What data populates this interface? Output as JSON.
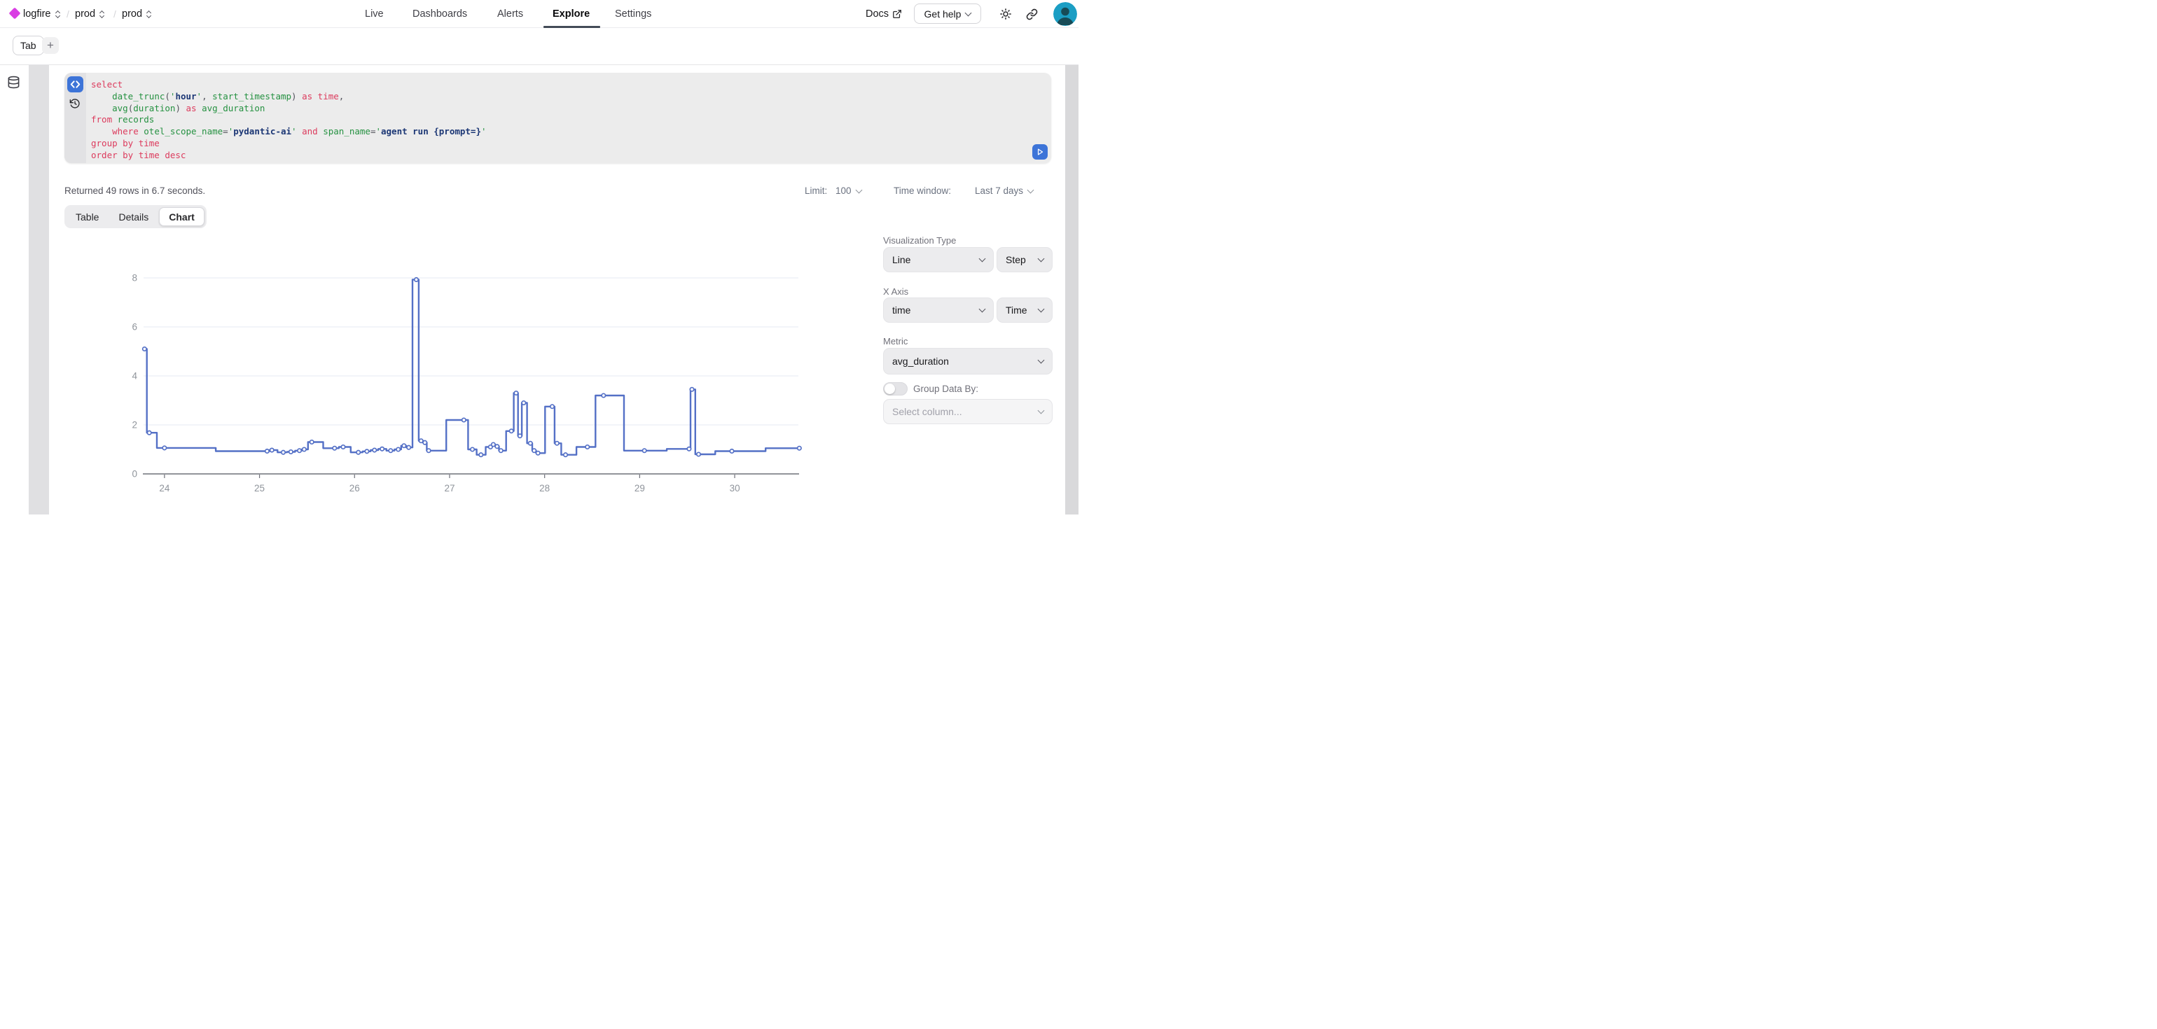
{
  "colors": {
    "logo_magenta": "#d93ee3",
    "accent_blue": "#3d74d8",
    "chart_line": "#5470c6",
    "grid_line": "#e4e9f3",
    "axis_line": "#6e7079",
    "tick_text": "#8f949b"
  },
  "nav": {
    "breadcrumb": {
      "org": "logfire",
      "env": "prod",
      "project": "prod",
      "separator": "/"
    },
    "items": [
      "Live",
      "Dashboards",
      "Alerts",
      "Explore",
      "Settings"
    ],
    "active_item": "Explore",
    "docs_label": "Docs",
    "get_help_label": "Get help"
  },
  "tab_bar": {
    "tab_label": "Tab",
    "add_tab_label": "+"
  },
  "editor": {
    "sql_lines": [
      [
        [
          "k",
          "select"
        ]
      ],
      [
        [
          "p",
          "    "
        ],
        [
          "i",
          "date_trunc"
        ],
        [
          "p",
          "("
        ],
        [
          "q",
          "'"
        ],
        [
          "s",
          "hour"
        ],
        [
          "q",
          "'"
        ],
        [
          "p",
          ", "
        ],
        [
          "i",
          "start_timestamp"
        ],
        [
          "p",
          ") "
        ],
        [
          "k",
          "as time"
        ],
        [
          "p",
          ","
        ]
      ],
      [
        [
          "p",
          "    "
        ],
        [
          "i",
          "avg"
        ],
        [
          "p",
          "("
        ],
        [
          "i",
          "duration"
        ],
        [
          "p",
          ") "
        ],
        [
          "k",
          "as"
        ],
        [
          "i",
          " avg_duration"
        ]
      ],
      [
        [
          "k",
          "from"
        ],
        [
          "i",
          " records"
        ]
      ],
      [
        [
          "p",
          "    "
        ],
        [
          "k",
          "where"
        ],
        [
          "i",
          " otel_scope_name"
        ],
        [
          "p",
          "="
        ],
        [
          "q",
          "'"
        ],
        [
          "s",
          "pydantic-ai"
        ],
        [
          "q",
          "'"
        ],
        [
          "k",
          " and"
        ],
        [
          "i",
          " span_name"
        ],
        [
          "p",
          "="
        ],
        [
          "q",
          "'"
        ],
        [
          "s",
          "agent run {prompt=}"
        ],
        [
          "q",
          "'"
        ]
      ],
      [
        [
          "k",
          "group by time"
        ]
      ],
      [
        [
          "k",
          "order by time desc"
        ]
      ]
    ]
  },
  "results_bar": {
    "status": "Returned 49 rows in 6.7 seconds.",
    "limit_label": "Limit:",
    "limit_value": "100",
    "time_window_label": "Time window:",
    "time_window_value": "Last 7 days"
  },
  "view_switcher": {
    "options": [
      "Table",
      "Details",
      "Chart"
    ],
    "active": "Chart"
  },
  "viz_panel": {
    "visualization_type_label": "Visualization Type",
    "visualization_type_value": "Line",
    "visualization_subtype_value": "Step",
    "x_axis_label": "X Axis",
    "x_axis_value": "time",
    "x_axis_type_value": "Time",
    "metric_label": "Metric",
    "metric_value": "avg_duration",
    "group_by_label": "Group Data By:",
    "group_by_enabled": false,
    "group_by_placeholder": "Select column..."
  },
  "chart_data": {
    "type": "line",
    "step": "middle",
    "series_name": "avg_duration",
    "x_label_unit": "day of month",
    "x_days": [
      23.79,
      23.84,
      24.0,
      25.08,
      25.13,
      25.25,
      25.33,
      25.42,
      25.47,
      25.55,
      25.79,
      25.88,
      26.04,
      26.13,
      26.21,
      26.29,
      26.38,
      26.46,
      26.52,
      26.57,
      26.65,
      26.7,
      26.74,
      26.78,
      27.15,
      27.24,
      27.33,
      27.43,
      27.46,
      27.5,
      27.54,
      27.65,
      27.7,
      27.74,
      27.78,
      27.85,
      27.89,
      27.93,
      28.08,
      28.13,
      28.22,
      28.45,
      28.62,
      29.05,
      29.52,
      29.55,
      29.62,
      29.97,
      30.68
    ],
    "values": [
      5.1,
      1.68,
      1.06,
      0.93,
      0.97,
      0.88,
      0.9,
      0.95,
      1.0,
      1.3,
      1.05,
      1.1,
      0.88,
      0.92,
      0.97,
      1.02,
      0.95,
      1.0,
      1.15,
      1.08,
      7.93,
      1.35,
      1.28,
      0.95,
      2.2,
      1.0,
      0.78,
      1.1,
      1.2,
      1.12,
      0.95,
      1.75,
      3.3,
      1.55,
      2.9,
      1.25,
      0.95,
      0.85,
      2.75,
      1.25,
      0.78,
      1.1,
      3.2,
      0.95,
      1.02,
      3.45,
      0.8,
      0.93,
      1.05
    ],
    "x_ticks": [
      24,
      25,
      26,
      27,
      28,
      29,
      30
    ],
    "y_ticks": [
      0,
      2,
      4,
      6,
      8
    ],
    "xlim": [
      23.78,
      30.67
    ],
    "ylim": [
      0,
      8.6
    ],
    "grid": true,
    "legend": false,
    "marker": "circle"
  }
}
